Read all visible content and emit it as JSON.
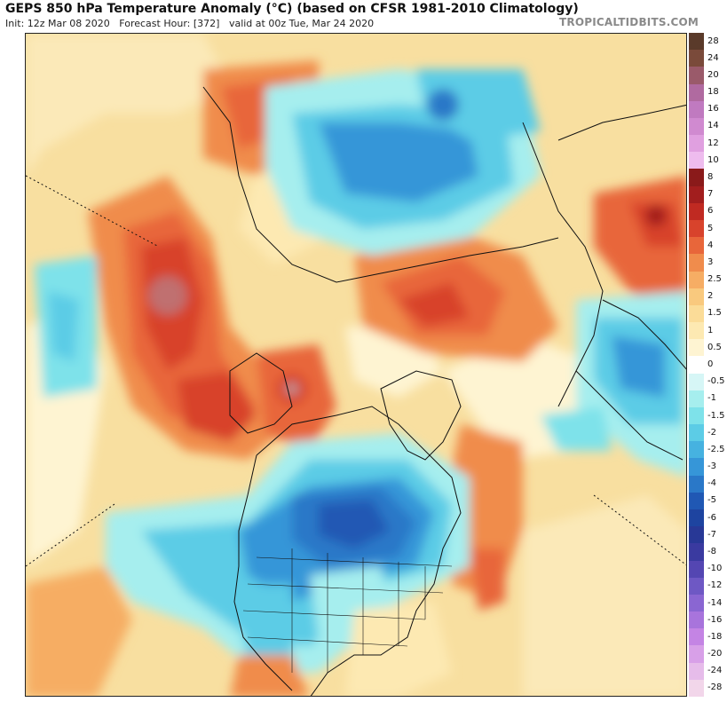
{
  "title": "GEPS 850 hPa Temperature Anomaly (°C) (based on CFSR 1981-2010 Climatology)",
  "subtitle": {
    "init": "Init: 12z Mar 08 2020",
    "forecast": "Forecast Hour: [372]",
    "valid": "valid at 00z Tue, Mar 24 2020"
  },
  "brand": "TROPICALTIDBITS.COM",
  "legend": {
    "ticks": [
      "28",
      "24",
      "20",
      "18",
      "16",
      "14",
      "12",
      "10",
      "8",
      "7",
      "6",
      "5",
      "4",
      "3",
      "2.5",
      "2",
      "1.5",
      "1",
      "0.5",
      "0",
      "-0.5",
      "-1",
      "-1.5",
      "-2",
      "-2.5",
      "-3",
      "-4",
      "-5",
      "-6",
      "-7",
      "-8",
      "-10",
      "-12",
      "-14",
      "-16",
      "-18",
      "-20",
      "-24",
      "-28"
    ],
    "colors": [
      "#5a3a2a",
      "#7a4a3a",
      "#9a5a6a",
      "#b06aa0",
      "#c07ac0",
      "#d08ad0",
      "#e0a0e0",
      "#eebcee",
      "#8a1a1a",
      "#a21e1e",
      "#c02a22",
      "#d8432c",
      "#e8663a",
      "#f08c4c",
      "#f6ad64",
      "#f9c97e",
      "#fbdc98",
      "#fde9b2",
      "#fef4d2",
      "#ffffff",
      "#d6f6f6",
      "#a6eeee",
      "#7ee2ea",
      "#5ccce6",
      "#46b2e0",
      "#3696d8",
      "#2a78c8",
      "#2058b4",
      "#1e44a0",
      "#283896",
      "#3a3aa0",
      "#5446b2",
      "#6e58c4",
      "#8a66d2",
      "#a874dc",
      "#c484e4",
      "#d8a0e8",
      "#e6bcea",
      "#f2d6ea"
    ]
  }
}
